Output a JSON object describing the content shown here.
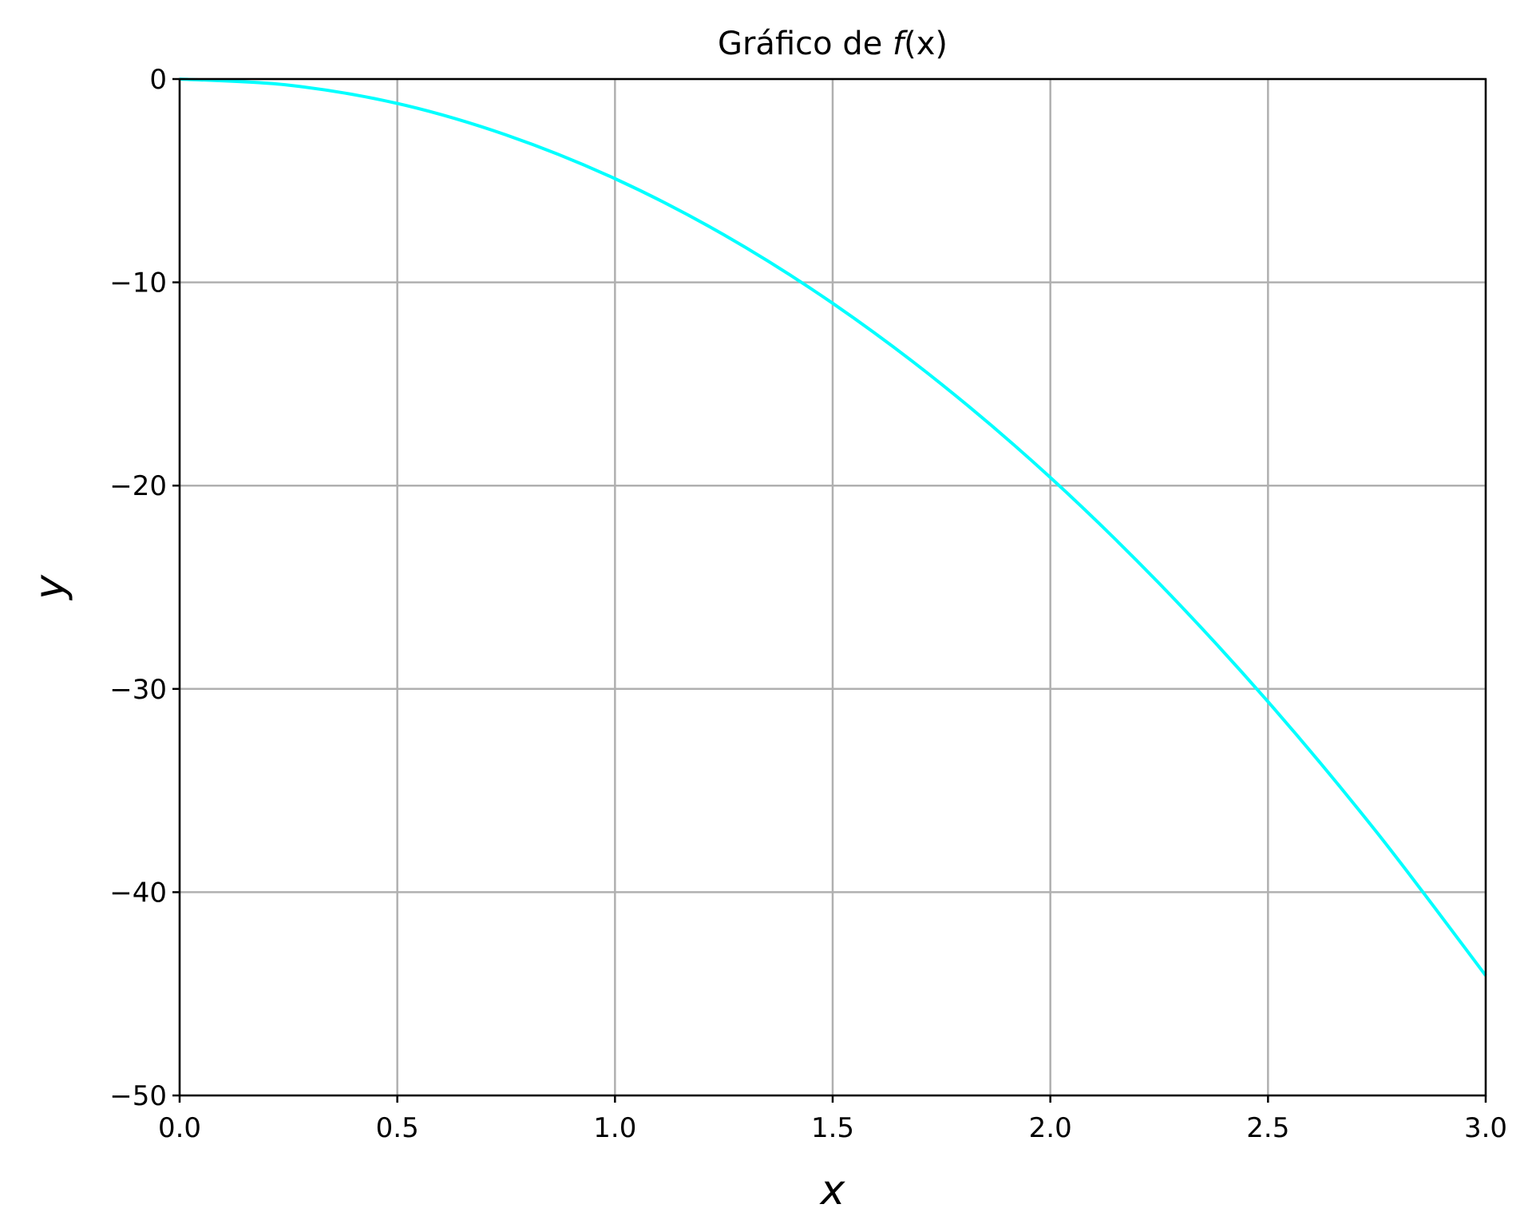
{
  "chart_data": {
    "type": "line",
    "title": "Gráfico de f(x)",
    "title_parts": {
      "prefix": "Gráfico de ",
      "func": "f",
      "arg": "(x)"
    },
    "xlabel": "x",
    "ylabel": "y",
    "xlim": [
      0.0,
      3.0
    ],
    "ylim": [
      -50,
      0
    ],
    "xticks": [
      0.0,
      0.5,
      1.0,
      1.5,
      2.0,
      2.5,
      3.0
    ],
    "xtick_labels": [
      "0.0",
      "0.5",
      "1.0",
      "1.5",
      "2.0",
      "2.5",
      "3.0"
    ],
    "yticks": [
      0,
      -10,
      -20,
      -30,
      -40,
      -50
    ],
    "ytick_labels": [
      "0",
      "−10",
      "−20",
      "−30",
      "−40",
      "−50"
    ],
    "grid": true,
    "series": [
      {
        "color": "#00ffff",
        "x": [
          0.0,
          0.25,
          0.5,
          0.75,
          1.0,
          1.25,
          1.5,
          1.75,
          2.0,
          2.25,
          2.5,
          2.75,
          3.0
        ],
        "y": [
          0.0,
          -0.3,
          -1.2,
          -2.75,
          -4.9,
          -7.66,
          -11.03,
          -15.01,
          -19.6,
          -24.81,
          -30.63,
          -37.06,
          -44.1
        ]
      }
    ]
  }
}
